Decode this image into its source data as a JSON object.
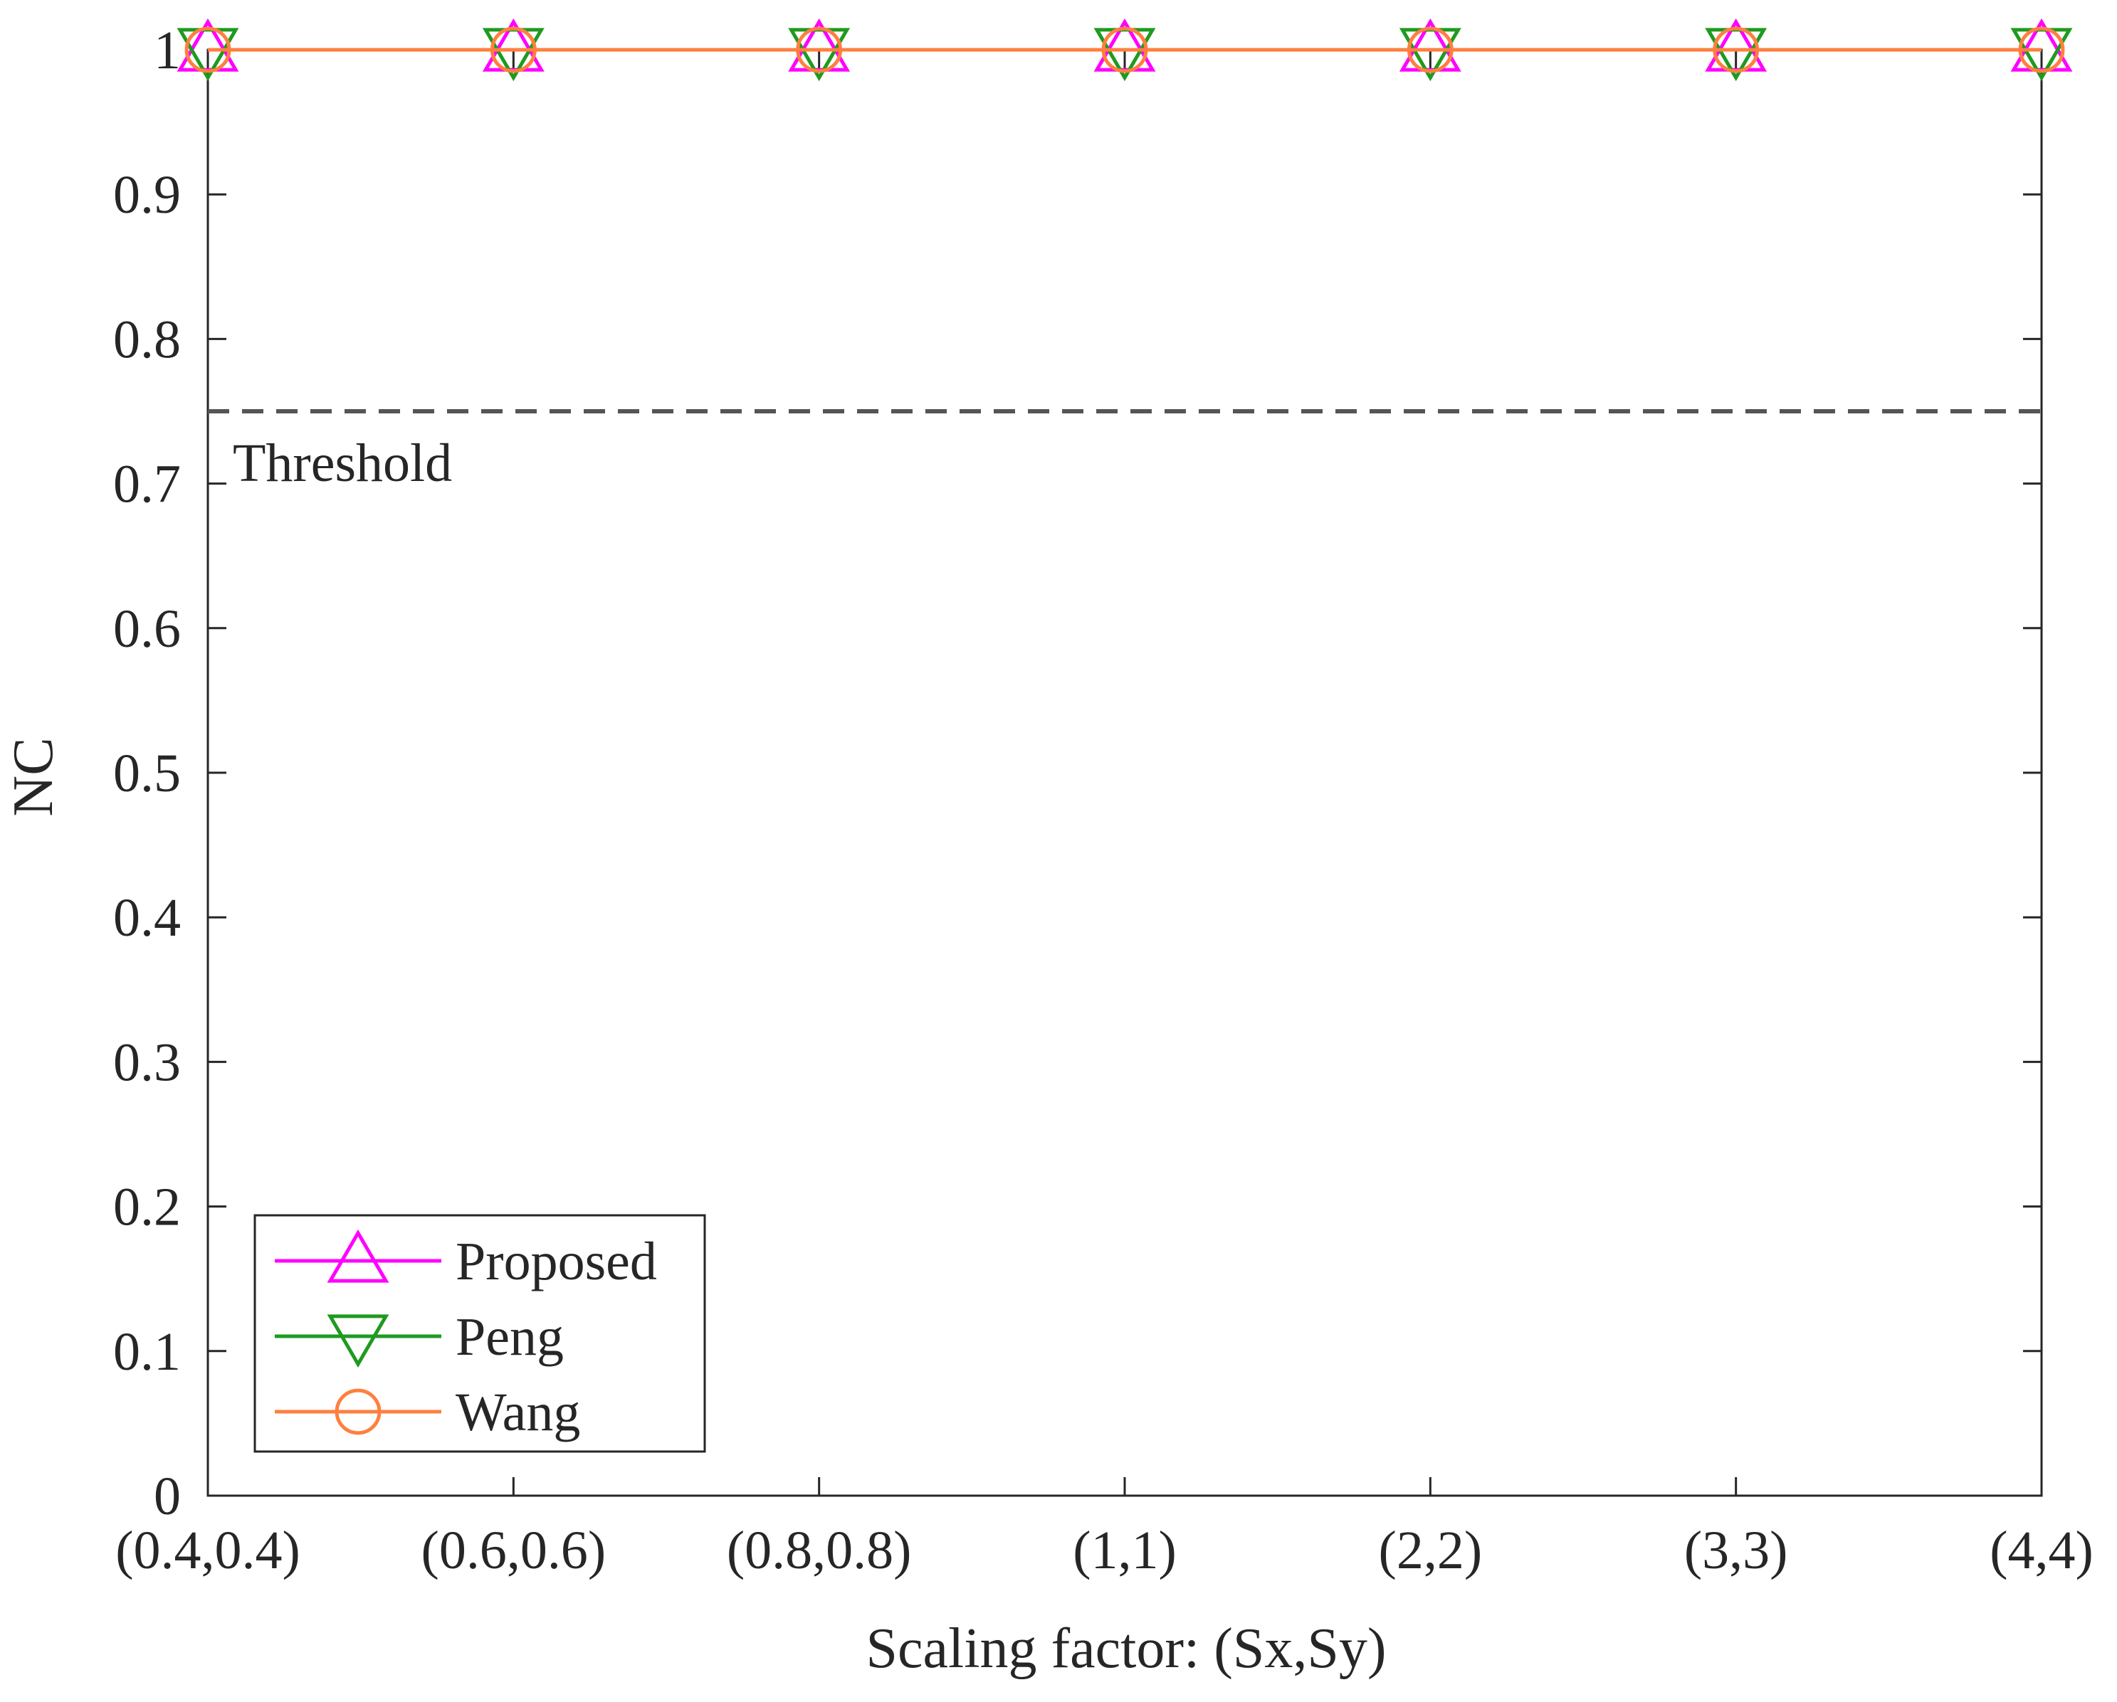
{
  "chart_data": {
    "type": "line",
    "xlabel": "Scaling factor: (Sx,Sy)",
    "ylabel": "NC",
    "categories": [
      "(0.4,0.4)",
      "(0.6,0.6)",
      "(0.8,0.8)",
      "(1,1)",
      "(2,2)",
      "(3,3)",
      "(4,4)"
    ],
    "ylim": [
      0,
      1
    ],
    "yticks": [
      "0",
      "0.1",
      "0.2",
      "0.3",
      "0.4",
      "0.5",
      "0.6",
      "0.7",
      "0.8",
      "0.9",
      "1"
    ],
    "series": [
      {
        "name": "Proposed",
        "color": "#ff00ff",
        "marker": "triangle-up",
        "values": [
          1,
          1,
          1,
          1,
          1,
          1,
          1
        ]
      },
      {
        "name": "Peng",
        "color": "#1f9a1f",
        "marker": "triangle-down",
        "values": [
          1,
          1,
          1,
          1,
          1,
          1,
          1
        ]
      },
      {
        "name": "Wang",
        "color": "#ff7f3f",
        "marker": "circle",
        "values": [
          1,
          1,
          1,
          1,
          1,
          1,
          1
        ]
      }
    ],
    "threshold": {
      "value": 0.75,
      "label": "Threshold",
      "color": "#555555"
    },
    "grid": false,
    "legend_position": "bottom-left"
  }
}
